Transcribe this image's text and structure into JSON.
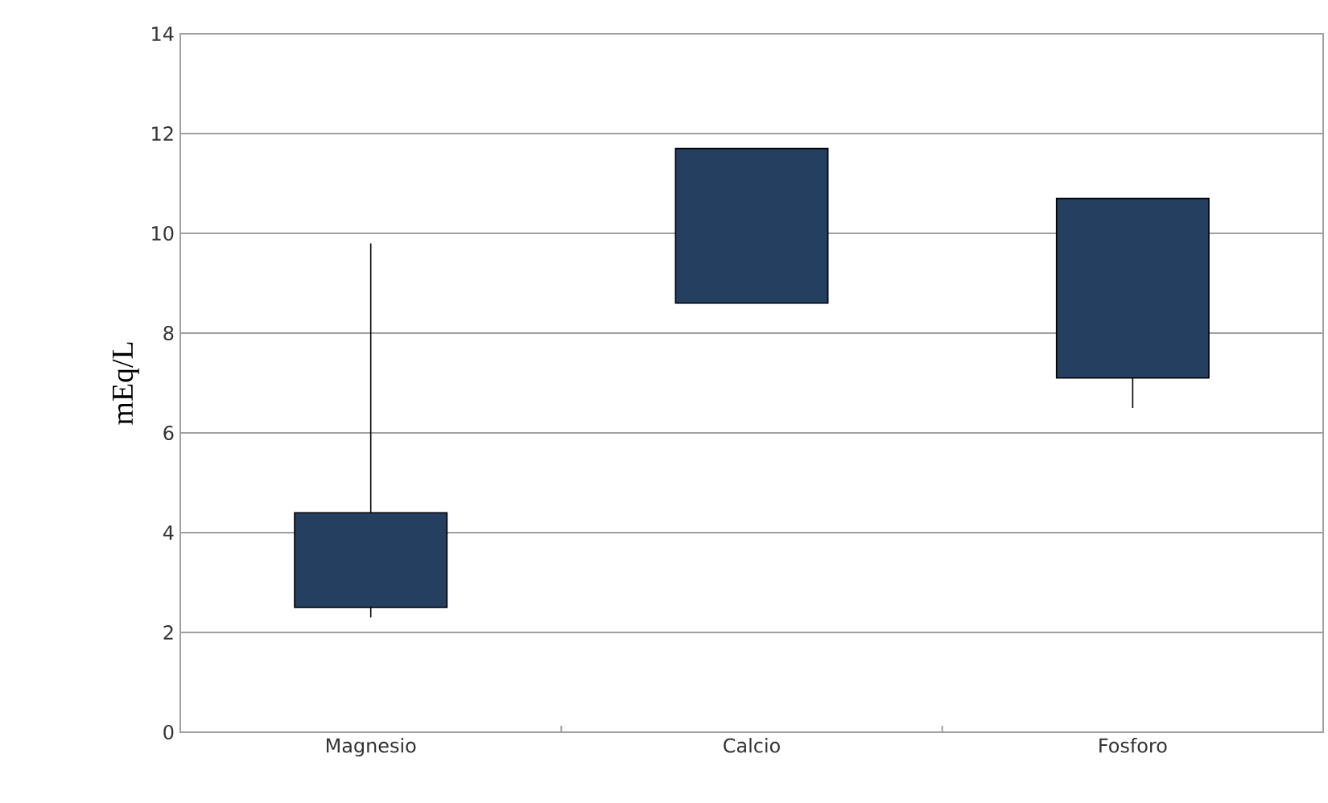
{
  "chart_data": {
    "type": "candlestick",
    "ylabel": "mEq/L",
    "categories": [
      "Magnesio",
      "Calcio",
      "Fosforo"
    ],
    "ohlc": [
      [
        4.4,
        9.8,
        2.3,
        2.5
      ],
      [
        11.7,
        11.7,
        8.6,
        8.6
      ],
      [
        10.7,
        10.7,
        6.5,
        7.1
      ]
    ],
    "color": "#243f60",
    "ylim": [
      0,
      14
    ],
    "yticks": [
      0,
      2,
      4,
      6,
      8,
      10,
      12,
      14
    ],
    "grid": "y"
  }
}
